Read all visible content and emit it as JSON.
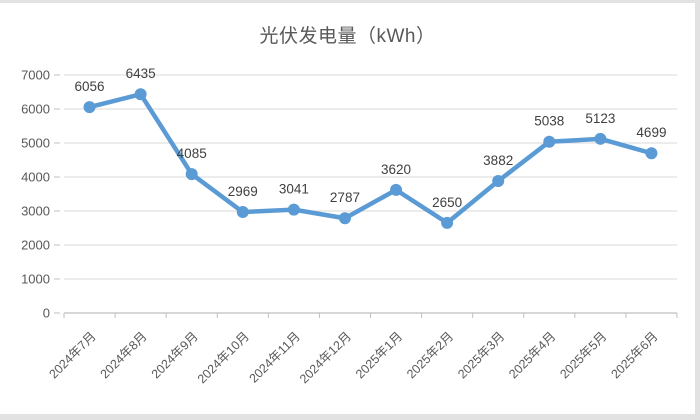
{
  "window": {
    "background": "#ffffff",
    "frame_border_color": "#e2e2e2"
  },
  "chart_data": {
    "type": "line",
    "title": "光伏发电量（kWh）",
    "categories": [
      "2024年7月",
      "2024年8月",
      "2024年9月",
      "2024年10月",
      "2024年11月",
      "2024年12月",
      "2025年1月",
      "2025年2月",
      "2025年3月",
      "2025年4月",
      "2025年5月",
      "2025年6月"
    ],
    "values": [
      6056,
      6435,
      4085,
      2969,
      3041,
      2787,
      3620,
      2650,
      3882,
      5038,
      5123,
      4699
    ],
    "data_labels": "above",
    "xlabel": "",
    "ylabel": "",
    "ylim": [
      0,
      7000
    ],
    "ytick_step": 1000,
    "ytick_labels": [
      "0",
      "1000",
      "2000",
      "3000",
      "4000",
      "5000",
      "6000",
      "7000"
    ],
    "grid": true,
    "legend": "none",
    "colors": {
      "line": "#5B9BD5",
      "marker": "#5B9BD5",
      "data_label": "#404040",
      "axis_text": "#595959",
      "title": "#595959",
      "gridline": "#d9d9d9",
      "axis_line": "#bfbfbf"
    }
  }
}
